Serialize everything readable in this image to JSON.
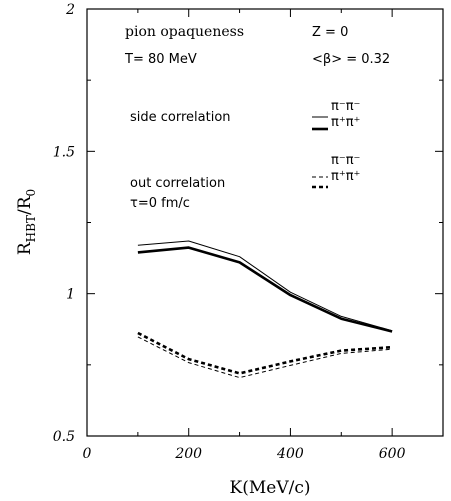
{
  "chart_data": {
    "type": "line",
    "xlabel": "K(MeV/c)",
    "ylabel_main": "R",
    "ylabel_sub1": "HBT",
    "ylabel_mid": "/R",
    "ylabel_sub2": "0",
    "xlim": [
      0,
      700
    ],
    "ylim": [
      0.5,
      2
    ],
    "xticks": [
      0,
      200,
      400,
      600
    ],
    "xtick_labels": [
      "0",
      "200",
      "400",
      "600"
    ],
    "yticks": [
      0.5,
      1,
      1.5,
      2
    ],
    "ytick_labels": [
      "0.5",
      "1",
      "1.5",
      "2"
    ],
    "grid": false,
    "annotations": {
      "pion_opaqueness": "pion opaqueness",
      "temperature": "T= 80 MeV",
      "z_value": "Z =   0",
      "beta": "<β> = 0.32",
      "side_correlation": "side correlation",
      "out_correlation": "out correlation",
      "tau": "τ=0 fm/c",
      "pi_minus": "π⁻π⁻",
      "pi_plus": "π⁺π⁺"
    },
    "x": [
      100,
      200,
      300,
      400,
      500,
      600
    ],
    "series": [
      {
        "group": "side",
        "name": "π⁻π⁻",
        "style": "solid-thin",
        "values": [
          1.17,
          1.185,
          1.13,
          1.005,
          0.92,
          0.87
        ]
      },
      {
        "group": "side",
        "name": "π⁺π⁺",
        "style": "solid-thick",
        "values": [
          1.145,
          1.162,
          1.11,
          0.995,
          0.912,
          0.867
        ]
      },
      {
        "group": "out",
        "name": "π⁻π⁻",
        "style": "dashed-thin",
        "values": [
          0.848,
          0.758,
          0.705,
          0.748,
          0.79,
          0.805
        ]
      },
      {
        "group": "out",
        "name": "π⁺π⁺",
        "style": "dashed-thick",
        "values": [
          0.862,
          0.77,
          0.72,
          0.762,
          0.8,
          0.812
        ]
      }
    ]
  }
}
